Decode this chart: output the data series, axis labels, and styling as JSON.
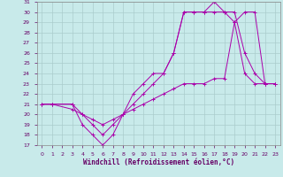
{
  "xlabel": "Windchill (Refroidissement éolien,°C)",
  "xlim": [
    -0.5,
    23.5
  ],
  "ylim": [
    17,
    31
  ],
  "yticks": [
    17,
    18,
    19,
    20,
    21,
    22,
    23,
    24,
    25,
    26,
    27,
    28,
    29,
    30,
    31
  ],
  "xticks": [
    0,
    1,
    2,
    3,
    4,
    5,
    6,
    7,
    8,
    9,
    10,
    11,
    12,
    13,
    14,
    15,
    16,
    17,
    18,
    19,
    20,
    21,
    22,
    23
  ],
  "bg_color": "#c8eaea",
  "grid_color": "#aacccc",
  "line_color": "#aa00aa",
  "lines": [
    {
      "x": [
        0,
        1,
        3,
        4,
        5,
        6,
        7,
        8,
        9,
        10,
        11,
        12,
        13,
        14,
        15,
        16,
        17,
        18,
        19,
        20,
        21,
        22,
        23
      ],
      "y": [
        21,
        21,
        21,
        19,
        18,
        17,
        18,
        20,
        21,
        22,
        23,
        24,
        26,
        30,
        30,
        30,
        31,
        30,
        30,
        26,
        24,
        23,
        23
      ]
    },
    {
      "x": [
        0,
        1,
        3,
        4,
        5,
        6,
        7,
        8,
        9,
        10,
        11,
        12,
        13,
        14,
        15,
        16,
        17,
        18,
        19,
        20,
        21,
        22,
        23
      ],
      "y": [
        21,
        21,
        21,
        20,
        19,
        18,
        19,
        20,
        22,
        23,
        24,
        24,
        26,
        30,
        30,
        30,
        30,
        30,
        29,
        24,
        23,
        23,
        23
      ]
    },
    {
      "x": [
        0,
        1,
        3,
        4,
        5,
        6,
        7,
        8,
        9,
        10,
        11,
        12,
        13,
        14,
        15,
        16,
        17,
        18,
        19,
        20,
        21,
        22,
        23
      ],
      "y": [
        21,
        21,
        20.5,
        20,
        19.5,
        19,
        19.5,
        20,
        20.5,
        21,
        21.5,
        22,
        22.5,
        23,
        23,
        23,
        23.5,
        23.5,
        29,
        30,
        30,
        23,
        23
      ]
    }
  ]
}
